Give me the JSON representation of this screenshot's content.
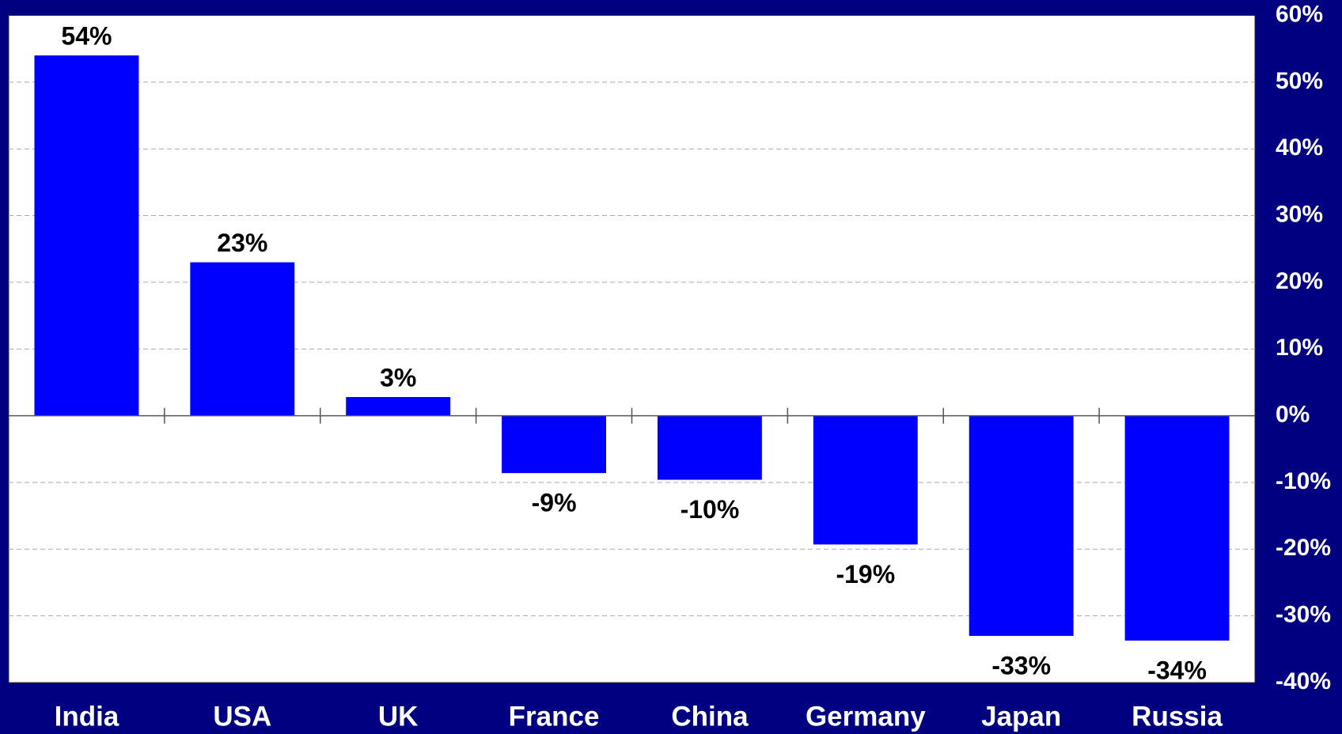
{
  "chart_data": {
    "type": "bar",
    "categories": [
      "India",
      "USA",
      "UK",
      "France",
      "China",
      "Germany",
      "Japan",
      "Russia"
    ],
    "values": [
      54,
      23,
      2.8,
      -8.6,
      -9.6,
      -19.3,
      -33,
      -33.7
    ],
    "value_labels": [
      "54%",
      "23%",
      "3%",
      "-9%",
      "-10%",
      "-19%",
      "-33%",
      "-34%"
    ],
    "color": "#0000ff",
    "ylim": [
      -40,
      60
    ],
    "yticks": [
      {
        "value": 60,
        "label": "60%"
      },
      {
        "value": 50,
        "label": "50%"
      },
      {
        "value": 40,
        "label": "40%"
      },
      {
        "value": 30,
        "label": "30%"
      },
      {
        "value": 20,
        "label": "20%"
      },
      {
        "value": 10,
        "label": "10%"
      },
      {
        "value": 0,
        "label": "0%"
      },
      {
        "value": -10,
        "label": "-10%"
      },
      {
        "value": -20,
        "label": "-20%"
      },
      {
        "value": -30,
        "label": "-30%"
      },
      {
        "value": -40,
        "label": "-40%"
      }
    ],
    "grid": true
  }
}
